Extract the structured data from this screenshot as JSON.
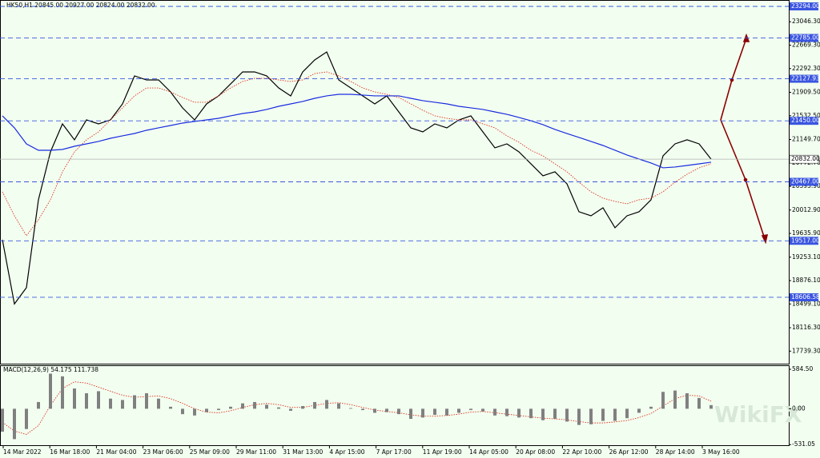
{
  "chart_data": [
    {
      "type": "price",
      "title": "HK50,H1  20845.00 20927.00 20824.00 20832.00",
      "ylim": [
        17537,
        23397
      ],
      "yticks": [
        {
          "value": 23046.3,
          "label": "23046.30"
        },
        {
          "value": 22669.3,
          "label": "22669.30"
        },
        {
          "value": 22292.3,
          "label": "22292.30"
        },
        {
          "value": 21909.5,
          "label": "21909.50"
        },
        {
          "value": 21532.5,
          "label": "21532.50"
        },
        {
          "value": 21149.7,
          "label": "21149.70"
        },
        {
          "value": 20772.7,
          "label": "20772.70"
        },
        {
          "value": 20395.9,
          "label": "20395.90"
        },
        {
          "value": 20012.9,
          "label": "20012.90"
        },
        {
          "value": 19635.9,
          "label": "19635.90"
        },
        {
          "value": 19253.1,
          "label": "19253.10"
        },
        {
          "value": 18876.1,
          "label": "18876.10"
        },
        {
          "value": 18499.1,
          "label": "18499.10"
        },
        {
          "value": 18116.3,
          "label": "18116.30"
        },
        {
          "value": 17739.3,
          "label": "17739.30"
        }
      ],
      "levels": [
        {
          "value": 23294,
          "label": "23294.00"
        },
        {
          "value": 22785,
          "label": "22785.00"
        },
        {
          "value": 22127.93,
          "label": "22127.93"
        },
        {
          "value": 21450,
          "label": "21450.00"
        },
        {
          "value": 20467,
          "label": "20467.00"
        },
        {
          "value": 19517,
          "label": "19517.00"
        },
        {
          "value": 18606.58,
          "label": "18606.58"
        }
      ],
      "level_color": "#3a55e0",
      "current": {
        "value": 20832,
        "label": "20832.00"
      },
      "x_labels": [
        "14 Mar 2022",
        "16 Mar 18:00",
        "21 Mar 04:00",
        "23 Mar 06:00",
        "25 Mar 09:00",
        "29 Mar 11:00",
        "31 Mar 13:00",
        "4 Apr 15:00",
        "7 Apr 17:00",
        "11 Apr 19:00",
        "14 Apr 05:00",
        "20 Apr 08:00",
        "22 Apr 10:00",
        "26 Apr 12:00",
        "28 Apr 14:00",
        "3 May 16:00"
      ],
      "series": [
        {
          "color": "#000000",
          "line_style": "solid",
          "values": [
            19534,
            18500,
            18762,
            20178,
            20950,
            21401,
            21144,
            21465,
            21401,
            21465,
            21723,
            22174,
            22109,
            22109,
            21916,
            21658,
            21465,
            21723,
            21852,
            22045,
            22238,
            22238,
            22174,
            21980,
            21852,
            22238,
            22431,
            22560,
            22109,
            21980,
            21852,
            21723,
            21852,
            21594,
            21337,
            21272,
            21401,
            21337,
            21465,
            21530,
            21272,
            21015,
            21079,
            20950,
            20757,
            20564,
            20629,
            20435,
            19985,
            19920,
            20049,
            19727,
            19920,
            19985,
            20178,
            20886,
            21079,
            21144,
            21079,
            20832
          ]
        },
        {
          "color": "#e03020",
          "line_style": "dotted",
          "values": [
            20307,
            19920,
            19598,
            19856,
            20178,
            20629,
            20950,
            21144,
            21272,
            21465,
            21659,
            21852,
            21980,
            21980,
            21916,
            21826,
            21749,
            21749,
            21852,
            21980,
            22084,
            22135,
            22135,
            22109,
            22084,
            22109,
            22212,
            22238,
            22174,
            22084,
            21980,
            21916,
            21877,
            21826,
            21723,
            21620,
            21530,
            21491,
            21465,
            21465,
            21401,
            21337,
            21208,
            21105,
            20976,
            20886,
            20757,
            20629,
            20461,
            20307,
            20204,
            20152,
            20113,
            20178,
            20204,
            20307,
            20461,
            20590,
            20693,
            20757
          ]
        },
        {
          "color": "#1a2be0",
          "line_style": "solid",
          "values": [
            21530,
            21337,
            21079,
            20976,
            20976,
            20989,
            21040,
            21079,
            21118,
            21169,
            21208,
            21246,
            21298,
            21337,
            21375,
            21414,
            21440,
            21465,
            21491,
            21530,
            21568,
            21594,
            21633,
            21684,
            21723,
            21762,
            21813,
            21852,
            21877,
            21877,
            21865,
            21852,
            21852,
            21852,
            21813,
            21775,
            21749,
            21723,
            21684,
            21659,
            21633,
            21594,
            21555,
            21504,
            21452,
            21388,
            21311,
            21246,
            21182,
            21118,
            21053,
            20976,
            20899,
            20834,
            20770,
            20693,
            20706,
            20731,
            20757,
            20783
          ]
        }
      ]
    },
    {
      "type": "macd",
      "title": "MACD(12,26,9) 54.175 111.738",
      "ylim": [
        -540,
        632
      ],
      "yticks": [
        {
          "value": 584.5,
          "label": "584.50"
        },
        {
          "value": 0,
          "label": "0.00"
        },
        {
          "value": -531.05,
          "label": "-531.05"
        }
      ],
      "series": [
        {
          "color": "#808080",
          "line_style": "bars",
          "values": [
            -340,
            -450,
            -300,
            100,
            520,
            480,
            300,
            230,
            260,
            150,
            130,
            200,
            230,
            150,
            30,
            -80,
            -100,
            -50,
            -20,
            30,
            80,
            100,
            60,
            20,
            -30,
            40,
            100,
            130,
            80,
            10,
            -20,
            -60,
            -50,
            -80,
            -150,
            -130,
            -90,
            -100,
            -60,
            -20,
            -40,
            -100,
            -110,
            -130,
            -140,
            -170,
            -150,
            -190,
            -240,
            -230,
            -180,
            -180,
            -140,
            -60,
            30,
            250,
            270,
            230,
            160,
            54.175
          ]
        },
        {
          "color": "#e03020",
          "line_style": "dotted",
          "values": [
            -200,
            -330,
            -380,
            -250,
            50,
            300,
            400,
            380,
            320,
            260,
            200,
            170,
            180,
            190,
            150,
            80,
            0,
            -50,
            -60,
            -30,
            20,
            60,
            80,
            60,
            20,
            20,
            50,
            80,
            90,
            60,
            20,
            -20,
            -40,
            -60,
            -90,
            -110,
            -110,
            -100,
            -80,
            -50,
            -40,
            -60,
            -80,
            -100,
            -120,
            -140,
            -150,
            -165,
            -190,
            -210,
            -210,
            -195,
            -175,
            -130,
            -70,
            40,
            150,
            200,
            190,
            111.738
          ]
        }
      ]
    }
  ],
  "watermark": "WikiFX"
}
